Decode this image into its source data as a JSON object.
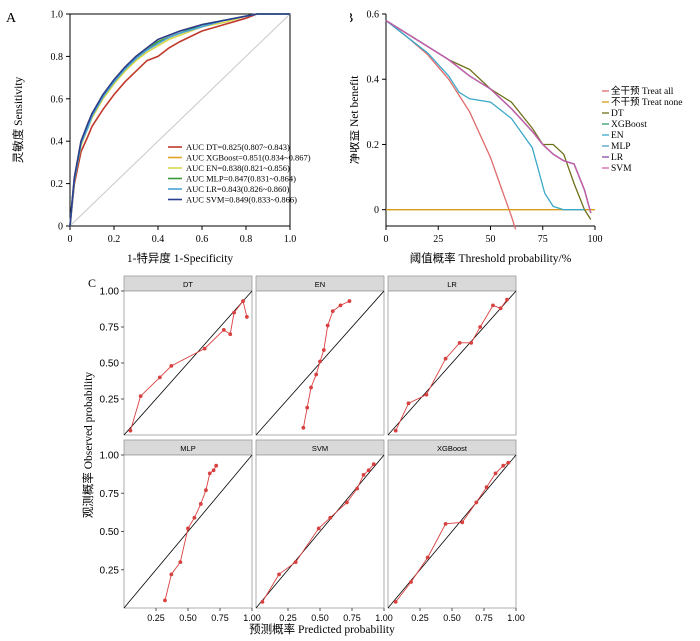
{
  "chart_data": [
    {
      "panel_label": "A",
      "type": "line",
      "xlabel": "1-特异度 1-Specificity",
      "ylabel": "灵敏度 Sensitivity",
      "xlim": [
        0,
        1
      ],
      "ylim": [
        0,
        1
      ],
      "xticks": [
        "0",
        "0.2",
        "0.4",
        "0.6",
        "0.8",
        "1.0"
      ],
      "yticks": [
        "0",
        "0.2",
        "0.4",
        "0.6",
        "0.8",
        "1.0"
      ],
      "legend_position": "bottom-right",
      "series": [
        {
          "name": "AUC DT=0.825(0.807~0.843)",
          "color": "#c0392b",
          "x": [
            0,
            0.01,
            0.02,
            0.05,
            0.08,
            0.1,
            0.15,
            0.2,
            0.25,
            0.3,
            0.35,
            0.4,
            0.45,
            0.5,
            0.6,
            0.7,
            0.8,
            0.85,
            0.9,
            1.0
          ],
          "y": [
            0,
            0.1,
            0.2,
            0.35,
            0.42,
            0.47,
            0.55,
            0.62,
            0.68,
            0.73,
            0.78,
            0.8,
            0.84,
            0.87,
            0.92,
            0.95,
            0.98,
            1.0,
            1.0,
            1.0
          ]
        },
        {
          "name": "AUC XGBoost=0.851(0.834~0.867)",
          "color": "#e0a526",
          "x": [
            0,
            0.01,
            0.02,
            0.05,
            0.08,
            0.1,
            0.15,
            0.2,
            0.25,
            0.3,
            0.35,
            0.4,
            0.45,
            0.5,
            0.6,
            0.7,
            0.8,
            0.85,
            0.9,
            1.0
          ],
          "y": [
            0,
            0.12,
            0.23,
            0.4,
            0.48,
            0.53,
            0.62,
            0.69,
            0.75,
            0.8,
            0.84,
            0.88,
            0.9,
            0.92,
            0.95,
            0.97,
            0.99,
            1.0,
            1.0,
            1.0
          ]
        },
        {
          "name": "AUC EN=0.838(0.821~0.856)",
          "color": "#d9d94a",
          "x": [
            0,
            0.01,
            0.02,
            0.05,
            0.08,
            0.1,
            0.15,
            0.2,
            0.25,
            0.3,
            0.35,
            0.4,
            0.45,
            0.5,
            0.6,
            0.7,
            0.8,
            0.85,
            0.9,
            1.0
          ],
          "y": [
            0,
            0.11,
            0.22,
            0.38,
            0.46,
            0.51,
            0.6,
            0.67,
            0.73,
            0.78,
            0.82,
            0.85,
            0.88,
            0.9,
            0.94,
            0.96,
            0.99,
            1.0,
            1.0,
            1.0
          ]
        },
        {
          "name": "AUC MLP=0.847(0.831~0.864)",
          "color": "#3a9a3a",
          "x": [
            0,
            0.01,
            0.02,
            0.05,
            0.08,
            0.1,
            0.15,
            0.2,
            0.25,
            0.3,
            0.35,
            0.4,
            0.45,
            0.5,
            0.6,
            0.7,
            0.8,
            0.85,
            0.9,
            1.0
          ],
          "y": [
            0,
            0.12,
            0.22,
            0.39,
            0.47,
            0.52,
            0.61,
            0.68,
            0.74,
            0.79,
            0.83,
            0.87,
            0.89,
            0.91,
            0.95,
            0.97,
            0.99,
            1.0,
            1.0,
            1.0
          ]
        },
        {
          "name": "AUC LR=0.843(0.826~0.860)",
          "color": "#4aa3d9",
          "x": [
            0,
            0.01,
            0.02,
            0.05,
            0.08,
            0.1,
            0.15,
            0.2,
            0.25,
            0.3,
            0.35,
            0.4,
            0.45,
            0.5,
            0.6,
            0.7,
            0.8,
            0.85,
            0.9,
            1.0
          ],
          "y": [
            0,
            0.11,
            0.22,
            0.39,
            0.46,
            0.52,
            0.61,
            0.68,
            0.74,
            0.79,
            0.83,
            0.86,
            0.89,
            0.91,
            0.94,
            0.97,
            0.99,
            1.0,
            1.0,
            1.0
          ]
        },
        {
          "name": "AUC SVM=0.849(0.833~0.866)",
          "color": "#2a3d8f",
          "x": [
            0,
            0.01,
            0.02,
            0.05,
            0.08,
            0.1,
            0.15,
            0.2,
            0.25,
            0.3,
            0.35,
            0.4,
            0.45,
            0.5,
            0.6,
            0.7,
            0.8,
            0.85,
            0.9,
            1.0
          ],
          "y": [
            0,
            0.12,
            0.23,
            0.4,
            0.48,
            0.53,
            0.62,
            0.69,
            0.75,
            0.8,
            0.84,
            0.88,
            0.9,
            0.92,
            0.95,
            0.97,
            0.99,
            1.0,
            1.0,
            1.0
          ]
        }
      ],
      "reference_line": {
        "color": "#c8c8c8"
      }
    },
    {
      "panel_label": "B",
      "type": "line",
      "xlabel": "阈值概率 Threshold probability/%",
      "ylabel": "净收益 Net benefit",
      "xlim": [
        0,
        100
      ],
      "ylim": [
        -0.05,
        0.6
      ],
      "xticks": [
        0,
        25,
        50,
        75,
        100
      ],
      "yticks": [
        0,
        0.2,
        0.4,
        0.6
      ],
      "legend_position": "right",
      "series": [
        {
          "name": "全干预 Treat all",
          "color": "#e06a6a",
          "x": [
            0,
            10,
            20,
            30,
            40,
            50,
            55,
            60,
            62
          ],
          "y": [
            0.58,
            0.53,
            0.475,
            0.4,
            0.3,
            0.16,
            0.07,
            -0.02,
            -0.06
          ]
        },
        {
          "name": "不干预 Treat none",
          "color": "#d99a1a",
          "x": [
            0,
            100
          ],
          "y": [
            0,
            0
          ]
        },
        {
          "name": "DT",
          "color": "#6f6f1a",
          "x": [
            0,
            10,
            20,
            30,
            35,
            40,
            50,
            60,
            70,
            75,
            80,
            85,
            90,
            95,
            98
          ],
          "y": [
            0.58,
            0.54,
            0.5,
            0.46,
            0.445,
            0.43,
            0.37,
            0.33,
            0.25,
            0.2,
            0.2,
            0.17,
            0.08,
            0.0,
            -0.03
          ]
        },
        {
          "name": "XGBoost",
          "color": "#2f9b6d",
          "x": [
            0,
            10,
            20,
            30,
            40,
            50,
            60,
            70,
            75,
            80,
            85,
            90,
            95,
            98
          ],
          "y": [
            0.58,
            0.54,
            0.5,
            0.46,
            0.41,
            0.37,
            0.31,
            0.24,
            0.2,
            0.17,
            0.15,
            0.14,
            0.06,
            -0.01
          ]
        },
        {
          "name": "EN",
          "color": "#3aa9c9",
          "x": [
            0,
            10,
            20,
            30,
            35,
            40,
            50,
            60,
            70,
            73,
            76,
            80,
            85,
            90,
            95
          ],
          "y": [
            0.58,
            0.53,
            0.48,
            0.41,
            0.36,
            0.34,
            0.33,
            0.28,
            0.19,
            0.12,
            0.05,
            0.01,
            0.0,
            0.0,
            0.0
          ]
        },
        {
          "name": "MLP",
          "color": "#4fa0c8",
          "x": [
            0,
            10,
            20,
            30,
            40,
            50,
            60,
            70,
            75,
            80,
            85,
            90,
            95,
            98
          ],
          "y": [
            0.58,
            0.54,
            0.5,
            0.46,
            0.41,
            0.37,
            0.31,
            0.24,
            0.2,
            0.17,
            0.15,
            0.14,
            0.06,
            -0.01
          ]
        },
        {
          "name": "LR",
          "color": "#8a4aa8",
          "x": [
            0,
            10,
            20,
            30,
            40,
            50,
            60,
            70,
            75,
            80,
            85,
            90,
            95,
            98
          ],
          "y": [
            0.58,
            0.54,
            0.5,
            0.46,
            0.41,
            0.37,
            0.31,
            0.24,
            0.2,
            0.17,
            0.15,
            0.14,
            0.06,
            -0.01
          ]
        },
        {
          "name": "SVM",
          "color": "#cc5fa8",
          "x": [
            0,
            10,
            20,
            30,
            40,
            50,
            60,
            70,
            75,
            80,
            85,
            90,
            95,
            98
          ],
          "y": [
            0.58,
            0.54,
            0.5,
            0.46,
            0.41,
            0.37,
            0.31,
            0.24,
            0.2,
            0.17,
            0.15,
            0.14,
            0.06,
            -0.01
          ]
        }
      ]
    },
    {
      "panel_label": "C",
      "type": "scatter",
      "xlabel": "预测概率 Predicted probability",
      "ylabel": "观测概率 Observed probability",
      "xlim": [
        0,
        1
      ],
      "ylim": [
        0,
        1
      ],
      "xticks": [
        "0.25",
        "0.50",
        "0.75",
        "1.00"
      ],
      "yticks": [
        "0.25",
        "0.50",
        "0.75",
        "1.00"
      ],
      "point_color": "#d94040",
      "facets": [
        {
          "name": "DT",
          "x": [
            0.05,
            0.13,
            0.28,
            0.37,
            0.63,
            0.78,
            0.83,
            0.86,
            0.93,
            0.96
          ],
          "y": [
            0.03,
            0.27,
            0.4,
            0.48,
            0.6,
            0.73,
            0.7,
            0.85,
            0.93,
            0.82
          ]
        },
        {
          "name": "EN",
          "x": [
            0.37,
            0.4,
            0.43,
            0.47,
            0.5,
            0.53,
            0.56,
            0.6,
            0.66,
            0.73
          ],
          "y": [
            0.05,
            0.19,
            0.33,
            0.42,
            0.51,
            0.59,
            0.76,
            0.86,
            0.9,
            0.93
          ]
        },
        {
          "name": "LR",
          "x": [
            0.06,
            0.16,
            0.3,
            0.45,
            0.56,
            0.65,
            0.72,
            0.82,
            0.88,
            0.93
          ],
          "y": [
            0.03,
            0.22,
            0.28,
            0.53,
            0.64,
            0.64,
            0.75,
            0.9,
            0.88,
            0.94
          ]
        },
        {
          "name": "MLP",
          "x": [
            0.32,
            0.37,
            0.44,
            0.5,
            0.55,
            0.6,
            0.64,
            0.67,
            0.7,
            0.72
          ],
          "y": [
            0.05,
            0.22,
            0.3,
            0.52,
            0.59,
            0.68,
            0.77,
            0.88,
            0.9,
            0.93
          ]
        },
        {
          "name": "SVM",
          "x": [
            0.05,
            0.18,
            0.31,
            0.49,
            0.58,
            0.71,
            0.79,
            0.84,
            0.88,
            0.92
          ],
          "y": [
            0.04,
            0.22,
            0.3,
            0.52,
            0.59,
            0.69,
            0.78,
            0.87,
            0.9,
            0.94
          ]
        },
        {
          "name": "XGBoost",
          "x": [
            0.06,
            0.18,
            0.31,
            0.45,
            0.58,
            0.69,
            0.77,
            0.84,
            0.9,
            0.94
          ],
          "y": [
            0.04,
            0.17,
            0.33,
            0.55,
            0.56,
            0.69,
            0.79,
            0.88,
            0.93,
            0.95
          ]
        }
      ]
    }
  ]
}
